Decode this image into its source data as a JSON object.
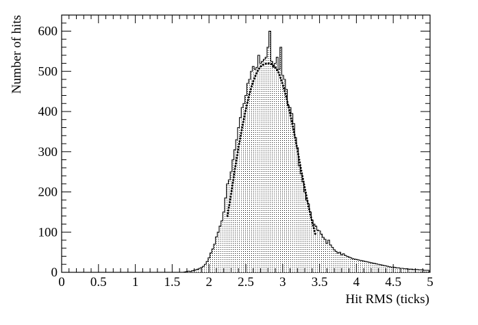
{
  "chart_data": {
    "type": "bar",
    "style": "step-histogram-with-fit",
    "xlabel": "Hit RMS (ticks)",
    "ylabel": "Number of hits",
    "xlim": [
      0,
      5
    ],
    "ylim": [
      0,
      640
    ],
    "grid": false,
    "legend": "none",
    "xticks": [
      0,
      0.5,
      1,
      1.5,
      2,
      2.5,
      3,
      3.5,
      4,
      4.5,
      5
    ],
    "xtick_labels": [
      "0",
      "0.5",
      "1",
      "1.5",
      "2",
      "2.5",
      "3",
      "3.5",
      "4",
      "4.5",
      "5"
    ],
    "yticks": [
      0,
      100,
      200,
      300,
      400,
      500,
      600
    ],
    "ytick_labels": [
      "0",
      "100",
      "200",
      "300",
      "400",
      "500",
      "600"
    ],
    "bin_width": 0.025,
    "histogram": {
      "x": [
        1.675,
        1.7,
        1.725,
        1.75,
        1.775,
        1.8,
        1.825,
        1.85,
        1.875,
        1.9,
        1.925,
        1.95,
        1.975,
        2.0,
        2.025,
        2.05,
        2.075,
        2.1,
        2.125,
        2.15,
        2.175,
        2.2,
        2.225,
        2.25,
        2.275,
        2.3,
        2.325,
        2.35,
        2.375,
        2.4,
        2.425,
        2.45,
        2.475,
        2.5,
        2.525,
        2.55,
        2.575,
        2.6,
        2.625,
        2.65,
        2.675,
        2.7,
        2.725,
        2.75,
        2.775,
        2.8,
        2.825,
        2.85,
        2.875,
        2.9,
        2.925,
        2.95,
        2.975,
        3.0,
        3.025,
        3.05,
        3.075,
        3.1,
        3.125,
        3.15,
        3.175,
        3.2,
        3.225,
        3.25,
        3.275,
        3.3,
        3.325,
        3.35,
        3.375,
        3.4,
        3.425,
        3.45,
        3.475,
        3.5,
        3.525,
        3.55,
        3.575,
        3.6,
        3.625,
        3.65,
        3.675,
        3.7,
        3.725,
        3.75,
        3.775,
        3.8,
        3.825,
        3.85,
        3.875,
        3.9,
        3.925,
        3.95,
        3.975,
        4.0,
        4.025,
        4.05,
        4.075,
        4.1,
        4.125,
        4.15,
        4.175,
        4.2,
        4.225,
        4.25,
        4.275,
        4.3,
        4.325,
        4.35,
        4.375,
        4.4,
        4.425,
        4.45,
        4.475,
        4.5,
        4.525,
        4.55,
        4.575,
        4.6,
        4.625,
        4.65,
        4.675,
        4.7,
        4.725,
        4.75,
        4.775,
        4.8,
        4.825,
        4.85,
        4.875,
        4.9,
        4.925,
        4.95,
        4.975
      ],
      "counts": [
        1,
        2,
        3,
        2,
        4,
        5,
        6,
        8,
        10,
        12,
        15,
        20,
        27,
        36,
        48,
        58,
        70,
        88,
        100,
        115,
        128,
        150,
        185,
        220,
        230,
        250,
        280,
        305,
        330,
        360,
        385,
        410,
        420,
        440,
        470,
        480,
        500,
        512,
        505,
        510,
        540,
        520,
        525,
        530,
        535,
        560,
        600,
        525,
        510,
        520,
        535,
        505,
        560,
        490,
        480,
        455,
        415,
        410,
        395,
        370,
        335,
        310,
        265,
        245,
        225,
        200,
        180,
        170,
        150,
        130,
        120,
        115,
        105,
        103,
        95,
        87,
        82,
        72,
        80,
        68,
        62,
        56,
        52,
        48,
        50,
        44,
        46,
        42,
        40,
        38,
        36,
        34,
        33,
        32,
        31,
        30,
        29,
        28,
        27,
        26,
        25,
        24,
        23,
        22,
        21,
        20,
        19,
        18,
        17,
        16,
        15,
        14,
        13,
        13,
        12,
        11,
        11,
        10,
        10,
        9,
        9,
        8,
        8,
        8,
        7,
        7,
        7,
        6,
        6,
        6,
        5,
        5,
        5
      ]
    },
    "fit": {
      "style": "dotted",
      "x": [
        2.25,
        2.3,
        2.35,
        2.4,
        2.45,
        2.5,
        2.55,
        2.6,
        2.65,
        2.7,
        2.75,
        2.8,
        2.85,
        2.9,
        2.95,
        3.0,
        3.05,
        3.1,
        3.15,
        3.2,
        3.25,
        3.3,
        3.35,
        3.4,
        3.45
      ],
      "y": [
        140,
        195,
        255,
        310,
        360,
        405,
        445,
        475,
        498,
        512,
        518,
        520,
        518,
        510,
        495,
        468,
        435,
        395,
        352,
        305,
        255,
        210,
        165,
        125,
        90
      ]
    }
  }
}
